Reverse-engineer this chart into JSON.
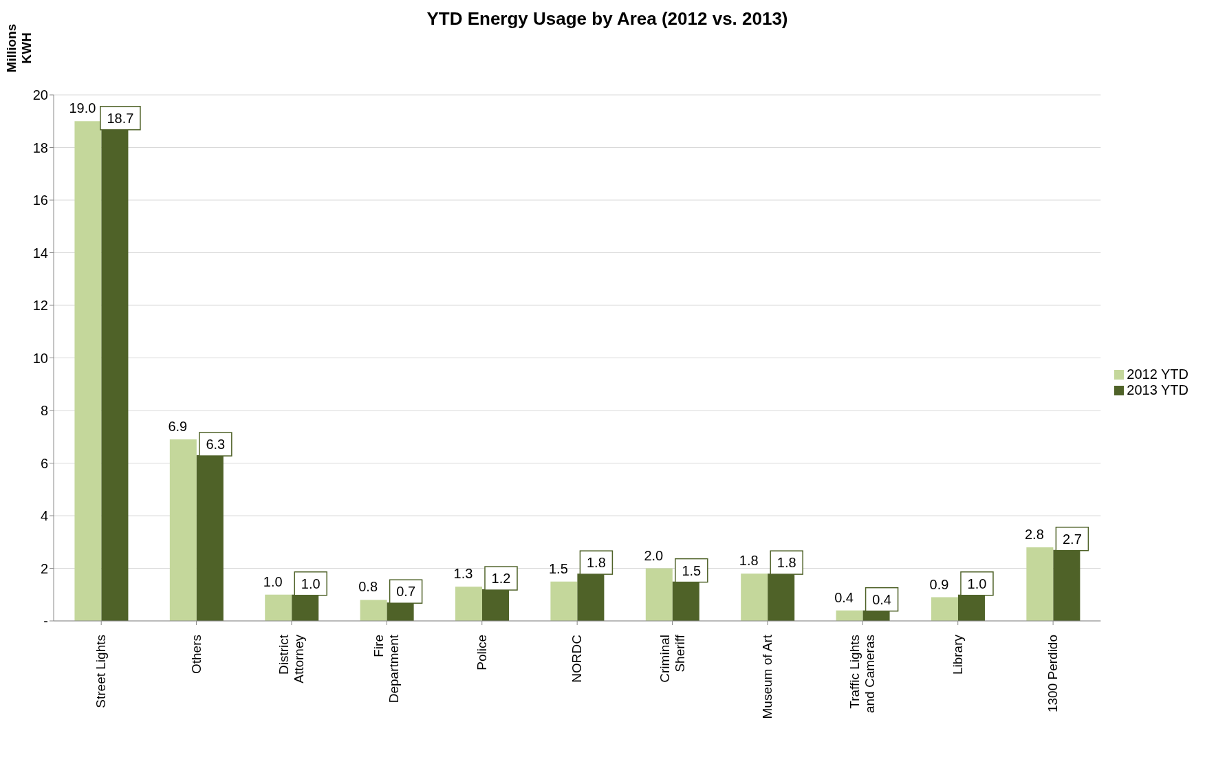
{
  "chart_data": {
    "type": "bar",
    "title": "YTD Energy Usage by Area (2012 vs. 2013)",
    "ylabel": "Millions KWH",
    "categories": [
      "Street Lights",
      "Others",
      "District Attorney",
      "Fire Department",
      "Police",
      "NORDC",
      "Criminal Sheriff",
      "Museum of Art",
      "Traffic Lights and Cameras",
      "Library",
      "1300 Perdido"
    ],
    "series": [
      {
        "name": "2012 YTD",
        "color": "#c4d79b",
        "values": [
          19.0,
          6.9,
          1.0,
          0.8,
          1.3,
          1.5,
          2.0,
          1.8,
          0.4,
          0.9,
          2.8
        ],
        "value_labels": [
          "19.0",
          "6.9",
          "1.0",
          "0.8",
          "1.3",
          "1.5",
          "2.0",
          "1.8",
          "0.4",
          "0.9",
          "2.8"
        ]
      },
      {
        "name": "2013 YTD",
        "color": "#4f6228",
        "values": [
          18.7,
          6.3,
          1.0,
          0.7,
          1.2,
          1.8,
          1.5,
          1.8,
          0.4,
          1.0,
          2.7
        ],
        "value_labels": [
          "18.7",
          "6.3",
          "1.0",
          "0.7",
          "1.2",
          "1.8",
          "1.5",
          "1.8",
          "0.4",
          "1.0",
          "2.7"
        ]
      }
    ],
    "ylim": [
      0,
      20
    ],
    "yticks": [
      {
        "value": 0,
        "label": "-"
      },
      2,
      4,
      6,
      8,
      10,
      12,
      14,
      16,
      18,
      20
    ],
    "grid": "y",
    "legend": "right"
  }
}
